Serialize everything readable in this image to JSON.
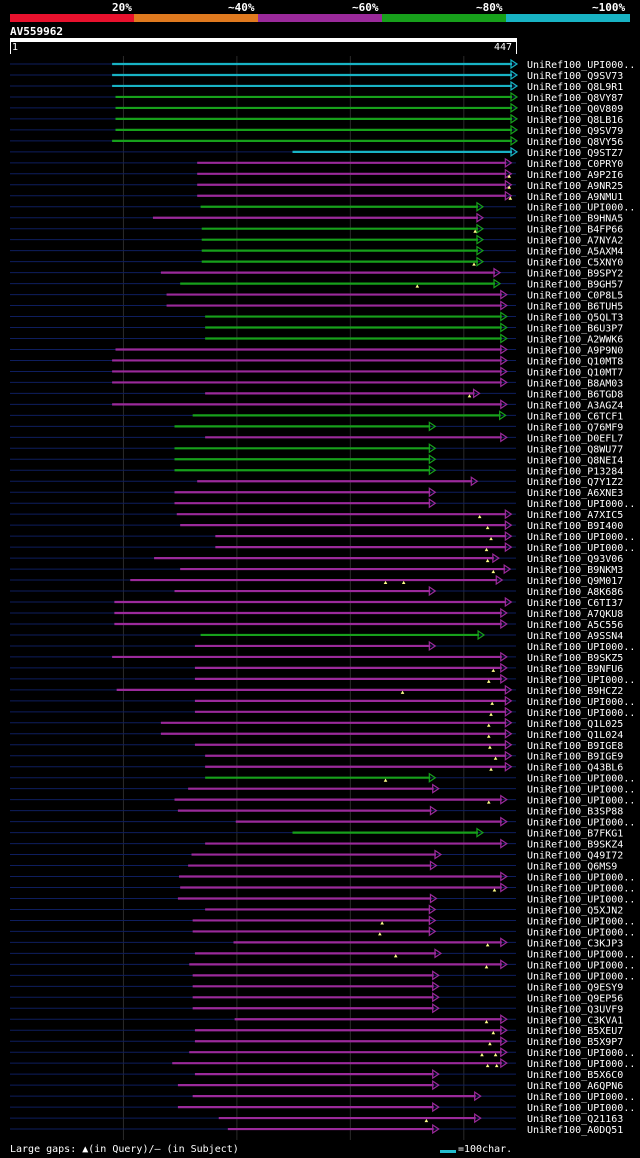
{
  "header": {
    "query_id": "AV559962",
    "ruler_start": "1",
    "ruler_end": "447",
    "legend": [
      {
        "label": "20%",
        "color": "#e8112d"
      },
      {
        "label": "~40%",
        "color": "#e07a1f"
      },
      {
        "label": "~60%",
        "color": "#9b2a9b"
      },
      {
        "label": "~80%",
        "color": "#17a01b"
      },
      {
        "label": "~100%",
        "color": "#18b3c4"
      }
    ]
  },
  "footer": {
    "gaps_text": "Large gaps: ▲(in Query)/– (in Subject)",
    "scale_text": "=100char."
  },
  "chart_data": {
    "type": "alignment",
    "title": "AV559962",
    "query_length": 447,
    "x_range": [
      1,
      447
    ],
    "identity_colors": {
      "cyan": "#18b3c4",
      "green": "#17a01b",
      "magenta": "#9b2a9b"
    },
    "hits": [
      {
        "name": "UniRef100_UPI000..",
        "start": 91,
        "end": 447,
        "color": "cyan",
        "gaps": []
      },
      {
        "name": "UniRef100_Q9SV73",
        "start": 91,
        "end": 447,
        "color": "cyan",
        "gaps": []
      },
      {
        "name": "UniRef100_Q8L9R1",
        "start": 91,
        "end": 447,
        "color": "cyan",
        "gaps": []
      },
      {
        "name": "UniRef100_Q8VY87",
        "start": 94,
        "end": 447,
        "color": "green",
        "gaps": []
      },
      {
        "name": "UniRef100_Q0V809",
        "start": 94,
        "end": 447,
        "color": "green",
        "gaps": []
      },
      {
        "name": "UniRef100_Q8LB16",
        "start": 94,
        "end": 447,
        "color": "green",
        "gaps": []
      },
      {
        "name": "UniRef100_Q9SV79",
        "start": 94,
        "end": 447,
        "color": "green",
        "gaps": []
      },
      {
        "name": "UniRef100_Q8VY56",
        "start": 91,
        "end": 447,
        "color": "green",
        "gaps": []
      },
      {
        "name": "UniRef100_Q9STZ7",
        "start": 250,
        "end": 447,
        "color": "cyan",
        "gaps": []
      },
      {
        "name": "UniRef100_C0PRY0",
        "start": 166,
        "end": 442,
        "color": "magenta",
        "gaps": []
      },
      {
        "name": "UniRef100_A9P2I6",
        "start": 166,
        "end": 442,
        "color": "magenta",
        "gaps": [
          441
        ]
      },
      {
        "name": "UniRef100_A9NR25",
        "start": 166,
        "end": 442,
        "color": "magenta",
        "gaps": [
          441
        ]
      },
      {
        "name": "UniRef100_A9NMU1",
        "start": 166,
        "end": 442,
        "color": "magenta",
        "gaps": [
          442
        ]
      },
      {
        "name": "UniRef100_UPI000..",
        "start": 169,
        "end": 417,
        "color": "green",
        "gaps": []
      },
      {
        "name": "UniRef100_B9HNA5",
        "start": 127,
        "end": 417,
        "color": "magenta",
        "gaps": []
      },
      {
        "name": "UniRef100_B4FP66",
        "start": 170,
        "end": 417,
        "color": "green",
        "gaps": [
          411
        ]
      },
      {
        "name": "UniRef100_A7NYA2",
        "start": 170,
        "end": 417,
        "color": "green",
        "gaps": []
      },
      {
        "name": "UniRef100_A5AXM4",
        "start": 170,
        "end": 417,
        "color": "green",
        "gaps": []
      },
      {
        "name": "UniRef100_C5XNY0",
        "start": 170,
        "end": 417,
        "color": "green",
        "gaps": [
          410
        ]
      },
      {
        "name": "UniRef100_B9SPY2",
        "start": 134,
        "end": 432,
        "color": "magenta",
        "gaps": []
      },
      {
        "name": "UniRef100_B9GH57",
        "start": 151,
        "end": 432,
        "color": "green",
        "gaps": [
          360
        ]
      },
      {
        "name": "UniRef100_C0P8L5",
        "start": 139,
        "end": 438,
        "color": "magenta",
        "gaps": []
      },
      {
        "name": "UniRef100_B6TUH5",
        "start": 139,
        "end": 438,
        "color": "magenta",
        "gaps": []
      },
      {
        "name": "UniRef100_Q5QLT3",
        "start": 173,
        "end": 438,
        "color": "green",
        "gaps": []
      },
      {
        "name": "UniRef100_B6U3P7",
        "start": 173,
        "end": 438,
        "color": "green",
        "gaps": []
      },
      {
        "name": "UniRef100_A2WWK6",
        "start": 173,
        "end": 438,
        "color": "green",
        "gaps": []
      },
      {
        "name": "UniRef100_A9P9N0",
        "start": 94,
        "end": 438,
        "color": "magenta",
        "gaps": []
      },
      {
        "name": "UniRef100_Q10MT8",
        "start": 91,
        "end": 438,
        "color": "magenta",
        "gaps": []
      },
      {
        "name": "UniRef100_Q10MT7",
        "start": 91,
        "end": 438,
        "color": "magenta",
        "gaps": []
      },
      {
        "name": "UniRef100_B8AM03",
        "start": 91,
        "end": 438,
        "color": "magenta",
        "gaps": []
      },
      {
        "name": "UniRef100_B6TGD8",
        "start": 173,
        "end": 414,
        "color": "magenta",
        "gaps": [
          406
        ]
      },
      {
        "name": "UniRef100_A3AGZ4",
        "start": 91,
        "end": 438,
        "color": "magenta",
        "gaps": []
      },
      {
        "name": "UniRef100_C6TCF1",
        "start": 162,
        "end": 437,
        "color": "green",
        "gaps": []
      },
      {
        "name": "UniRef100_Q76MF9",
        "start": 146,
        "end": 375,
        "color": "green",
        "gaps": []
      },
      {
        "name": "UniRef100_D0EFL7",
        "start": 173,
        "end": 438,
        "color": "magenta",
        "gaps": []
      },
      {
        "name": "UniRef100_Q8WU77",
        "start": 146,
        "end": 375,
        "color": "green",
        "gaps": []
      },
      {
        "name": "UniRef100_Q8NEI4",
        "start": 146,
        "end": 375,
        "color": "green",
        "gaps": []
      },
      {
        "name": "UniRef100_P13284",
        "start": 146,
        "end": 375,
        "color": "green",
        "gaps": []
      },
      {
        "name": "UniRef100_Q7Y1Z2",
        "start": 166,
        "end": 412,
        "color": "magenta",
        "gaps": []
      },
      {
        "name": "UniRef100_A6XNE3",
        "start": 146,
        "end": 375,
        "color": "magenta",
        "gaps": []
      },
      {
        "name": "UniRef100_UPI000..",
        "start": 146,
        "end": 375,
        "color": "magenta",
        "gaps": []
      },
      {
        "name": "UniRef100_A7XIC5",
        "start": 148,
        "end": 442,
        "color": "magenta",
        "gaps": [
          415
        ]
      },
      {
        "name": "UniRef100_B9I400",
        "start": 151,
        "end": 442,
        "color": "magenta",
        "gaps": [
          422
        ]
      },
      {
        "name": "UniRef100_UPI000..",
        "start": 182,
        "end": 442,
        "color": "magenta",
        "gaps": [
          425
        ]
      },
      {
        "name": "UniRef100_UPI000..",
        "start": 182,
        "end": 442,
        "color": "magenta",
        "gaps": [
          421
        ]
      },
      {
        "name": "UniRef100_Q93V06",
        "start": 128,
        "end": 431,
        "color": "magenta",
        "gaps": [
          422
        ]
      },
      {
        "name": "UniRef100_B9NKM3",
        "start": 151,
        "end": 441,
        "color": "magenta",
        "gaps": [
          427
        ]
      },
      {
        "name": "UniRef100_Q9M017",
        "start": 107,
        "end": 434,
        "color": "magenta",
        "gaps": [
          332,
          348
        ]
      },
      {
        "name": "UniRef100_A8K686",
        "start": 146,
        "end": 375,
        "color": "magenta",
        "gaps": []
      },
      {
        "name": "UniRef100_C6TI37",
        "start": 93,
        "end": 442,
        "color": "magenta",
        "gaps": []
      },
      {
        "name": "UniRef100_A7QKU8",
        "start": 93,
        "end": 438,
        "color": "magenta",
        "gaps": []
      },
      {
        "name": "UniRef100_A5C556",
        "start": 93,
        "end": 438,
        "color": "magenta",
        "gaps": []
      },
      {
        "name": "UniRef100_A9SSN4",
        "start": 169,
        "end": 418,
        "color": "green",
        "gaps": []
      },
      {
        "name": "UniRef100_UPI000..",
        "start": 164,
        "end": 375,
        "color": "magenta",
        "gaps": []
      },
      {
        "name": "UniRef100_B9SKZ5",
        "start": 91,
        "end": 438,
        "color": "magenta",
        "gaps": []
      },
      {
        "name": "UniRef100_B9NFU6",
        "start": 164,
        "end": 438,
        "color": "magenta",
        "gaps": [
          427
        ]
      },
      {
        "name": "UniRef100_UPI000..",
        "start": 164,
        "end": 438,
        "color": "magenta",
        "gaps": [
          423
        ]
      },
      {
        "name": "UniRef100_B9HCZ2",
        "start": 95,
        "end": 442,
        "color": "magenta",
        "gaps": [
          347
        ]
      },
      {
        "name": "UniRef100_UPI000..",
        "start": 164,
        "end": 442,
        "color": "magenta",
        "gaps": [
          426
        ]
      },
      {
        "name": "UniRef100_UPI000..",
        "start": 164,
        "end": 442,
        "color": "magenta",
        "gaps": [
          425
        ]
      },
      {
        "name": "UniRef100_Q1L025",
        "start": 134,
        "end": 442,
        "color": "magenta",
        "gaps": [
          423
        ]
      },
      {
        "name": "UniRef100_Q1L024",
        "start": 134,
        "end": 442,
        "color": "magenta",
        "gaps": [
          423
        ]
      },
      {
        "name": "UniRef100_B9IGE8",
        "start": 164,
        "end": 442,
        "color": "magenta",
        "gaps": [
          424
        ]
      },
      {
        "name": "UniRef100_B9IGE9",
        "start": 173,
        "end": 442,
        "color": "magenta",
        "gaps": [
          429
        ]
      },
      {
        "name": "UniRef100_Q43BL6",
        "start": 173,
        "end": 442,
        "color": "magenta",
        "gaps": [
          425
        ]
      },
      {
        "name": "UniRef100_UPI000..",
        "start": 173,
        "end": 375,
        "color": "green",
        "gaps": [
          332
        ]
      },
      {
        "name": "UniRef100_UPI000..",
        "start": 158,
        "end": 378,
        "color": "magenta",
        "gaps": []
      },
      {
        "name": "UniRef100_UPI000..",
        "start": 146,
        "end": 438,
        "color": "magenta",
        "gaps": [
          423
        ]
      },
      {
        "name": "UniRef100_B3SP88",
        "start": 149,
        "end": 376,
        "color": "magenta",
        "gaps": []
      },
      {
        "name": "UniRef100_UPI000..",
        "start": 200,
        "end": 438,
        "color": "magenta",
        "gaps": []
      },
      {
        "name": "UniRef100_B7FKG1",
        "start": 250,
        "end": 417,
        "color": "green",
        "gaps": []
      },
      {
        "name": "UniRef100_B9SKZ4",
        "start": 173,
        "end": 438,
        "color": "magenta",
        "gaps": []
      },
      {
        "name": "UniRef100_Q49I72",
        "start": 161,
        "end": 380,
        "color": "magenta",
        "gaps": []
      },
      {
        "name": "UniRef100_Q6MS9",
        "start": 158,
        "end": 376,
        "color": "magenta",
        "gaps": []
      },
      {
        "name": "UniRef100_UPI000..",
        "start": 150,
        "end": 438,
        "color": "magenta",
        "gaps": []
      },
      {
        "name": "UniRef100_UPI000..",
        "start": 151,
        "end": 438,
        "color": "magenta",
        "gaps": [
          428
        ]
      },
      {
        "name": "UniRef100_UPI000..",
        "start": 149,
        "end": 376,
        "color": "magenta",
        "gaps": []
      },
      {
        "name": "UniRef100_Q5XJN2",
        "start": 173,
        "end": 375,
        "color": "magenta",
        "gaps": []
      },
      {
        "name": "UniRef100_UPI000..",
        "start": 162,
        "end": 375,
        "color": "magenta",
        "gaps": [
          329
        ]
      },
      {
        "name": "UniRef100_UPI000..",
        "start": 162,
        "end": 375,
        "color": "magenta",
        "gaps": [
          327
        ]
      },
      {
        "name": "UniRef100_C3KJP3",
        "start": 198,
        "end": 438,
        "color": "magenta",
        "gaps": [
          422
        ]
      },
      {
        "name": "UniRef100_UPI000..",
        "start": 164,
        "end": 380,
        "color": "magenta",
        "gaps": [
          341
        ]
      },
      {
        "name": "UniRef100_UPI000..",
        "start": 159,
        "end": 438,
        "color": "magenta",
        "gaps": [
          421
        ]
      },
      {
        "name": "UniRef100_UPI000..",
        "start": 162,
        "end": 378,
        "color": "magenta",
        "gaps": []
      },
      {
        "name": "UniRef100_Q9ESY9",
        "start": 162,
        "end": 378,
        "color": "magenta",
        "gaps": []
      },
      {
        "name": "UniRef100_Q9EP56",
        "start": 162,
        "end": 378,
        "color": "magenta",
        "gaps": []
      },
      {
        "name": "UniRef100_Q3UVF9",
        "start": 162,
        "end": 378,
        "color": "magenta",
        "gaps": []
      },
      {
        "name": "UniRef100_C3KVA1",
        "start": 199,
        "end": 438,
        "color": "magenta",
        "gaps": [
          421
        ]
      },
      {
        "name": "UniRef100_B5XEU7",
        "start": 164,
        "end": 438,
        "color": "magenta",
        "gaps": [
          427
        ]
      },
      {
        "name": "UniRef100_B5X9P7",
        "start": 164,
        "end": 438,
        "color": "magenta",
        "gaps": [
          424
        ]
      },
      {
        "name": "UniRef100_UPI000..",
        "start": 159,
        "end": 438,
        "color": "magenta",
        "gaps": [
          417,
          429
        ]
      },
      {
        "name": "UniRef100_UPI000..",
        "start": 144,
        "end": 438,
        "color": "magenta",
        "gaps": [
          422,
          430
        ]
      },
      {
        "name": "UniRef100_B5X6C0",
        "start": 164,
        "end": 378,
        "color": "magenta",
        "gaps": []
      },
      {
        "name": "UniRef100_A6QPN6",
        "start": 149,
        "end": 378,
        "color": "magenta",
        "gaps": []
      },
      {
        "name": "UniRef100_UPI000..",
        "start": 162,
        "end": 415,
        "color": "magenta",
        "gaps": []
      },
      {
        "name": "UniRef100_UPI000..",
        "start": 149,
        "end": 378,
        "color": "magenta",
        "gaps": []
      },
      {
        "name": "UniRef100_Q21163",
        "start": 185,
        "end": 415,
        "color": "magenta",
        "gaps": [
          368
        ]
      },
      {
        "name": "UniRef100_A0DQ51",
        "start": 193,
        "end": 378,
        "color": "magenta",
        "gaps": []
      }
    ]
  }
}
